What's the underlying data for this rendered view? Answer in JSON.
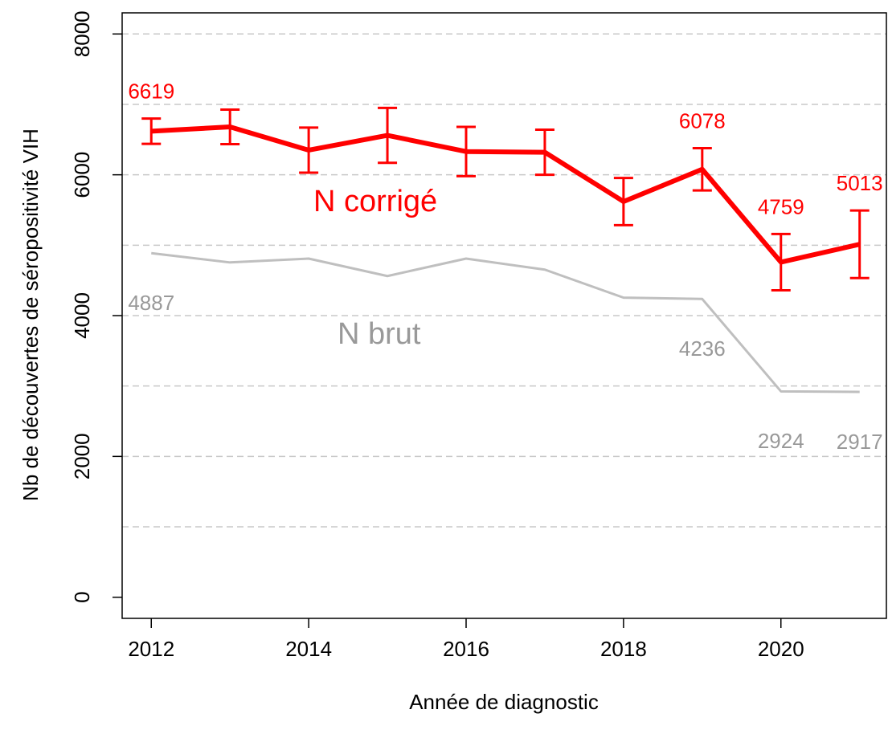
{
  "chart_data": {
    "type": "line",
    "x_label": "Année de diagnostic",
    "y_label": "Nb de découvertes de séropositivité VIH",
    "x": [
      2012,
      2013,
      2014,
      2015,
      2016,
      2017,
      2018,
      2019,
      2020,
      2021
    ],
    "series": [
      {
        "name": "N corrigé",
        "color": "#ff0000",
        "values": [
          6619,
          6680,
          6350,
          6560,
          6330,
          6320,
          5620,
          6078,
          4759,
          5013
        ],
        "errors": [
          180,
          245,
          320,
          390,
          350,
          320,
          335,
          300,
          400,
          480
        ],
        "value_labels": [
          "6619",
          null,
          null,
          null,
          null,
          null,
          null,
          "6078",
          "4759",
          "5013"
        ]
      },
      {
        "name": "N brut",
        "color": "#bfbfbf",
        "values": [
          4887,
          4755,
          4810,
          4562,
          4810,
          4653,
          4255,
          4236,
          2924,
          2917
        ],
        "value_labels": [
          "4887",
          null,
          null,
          null,
          null,
          null,
          null,
          "4236",
          "2924",
          "2917"
        ]
      }
    ],
    "xlim": [
      2011.63,
      2021.34
    ],
    "ylim": [
      -300,
      8300
    ],
    "xticks": [
      2012,
      2014,
      2016,
      2018,
      2020
    ],
    "yticks": [
      0,
      2000,
      4000,
      6000,
      8000
    ],
    "ygrid": [
      1000,
      2000,
      3000,
      4000,
      5000,
      6000,
      7000,
      8000
    ],
    "grid": true
  }
}
